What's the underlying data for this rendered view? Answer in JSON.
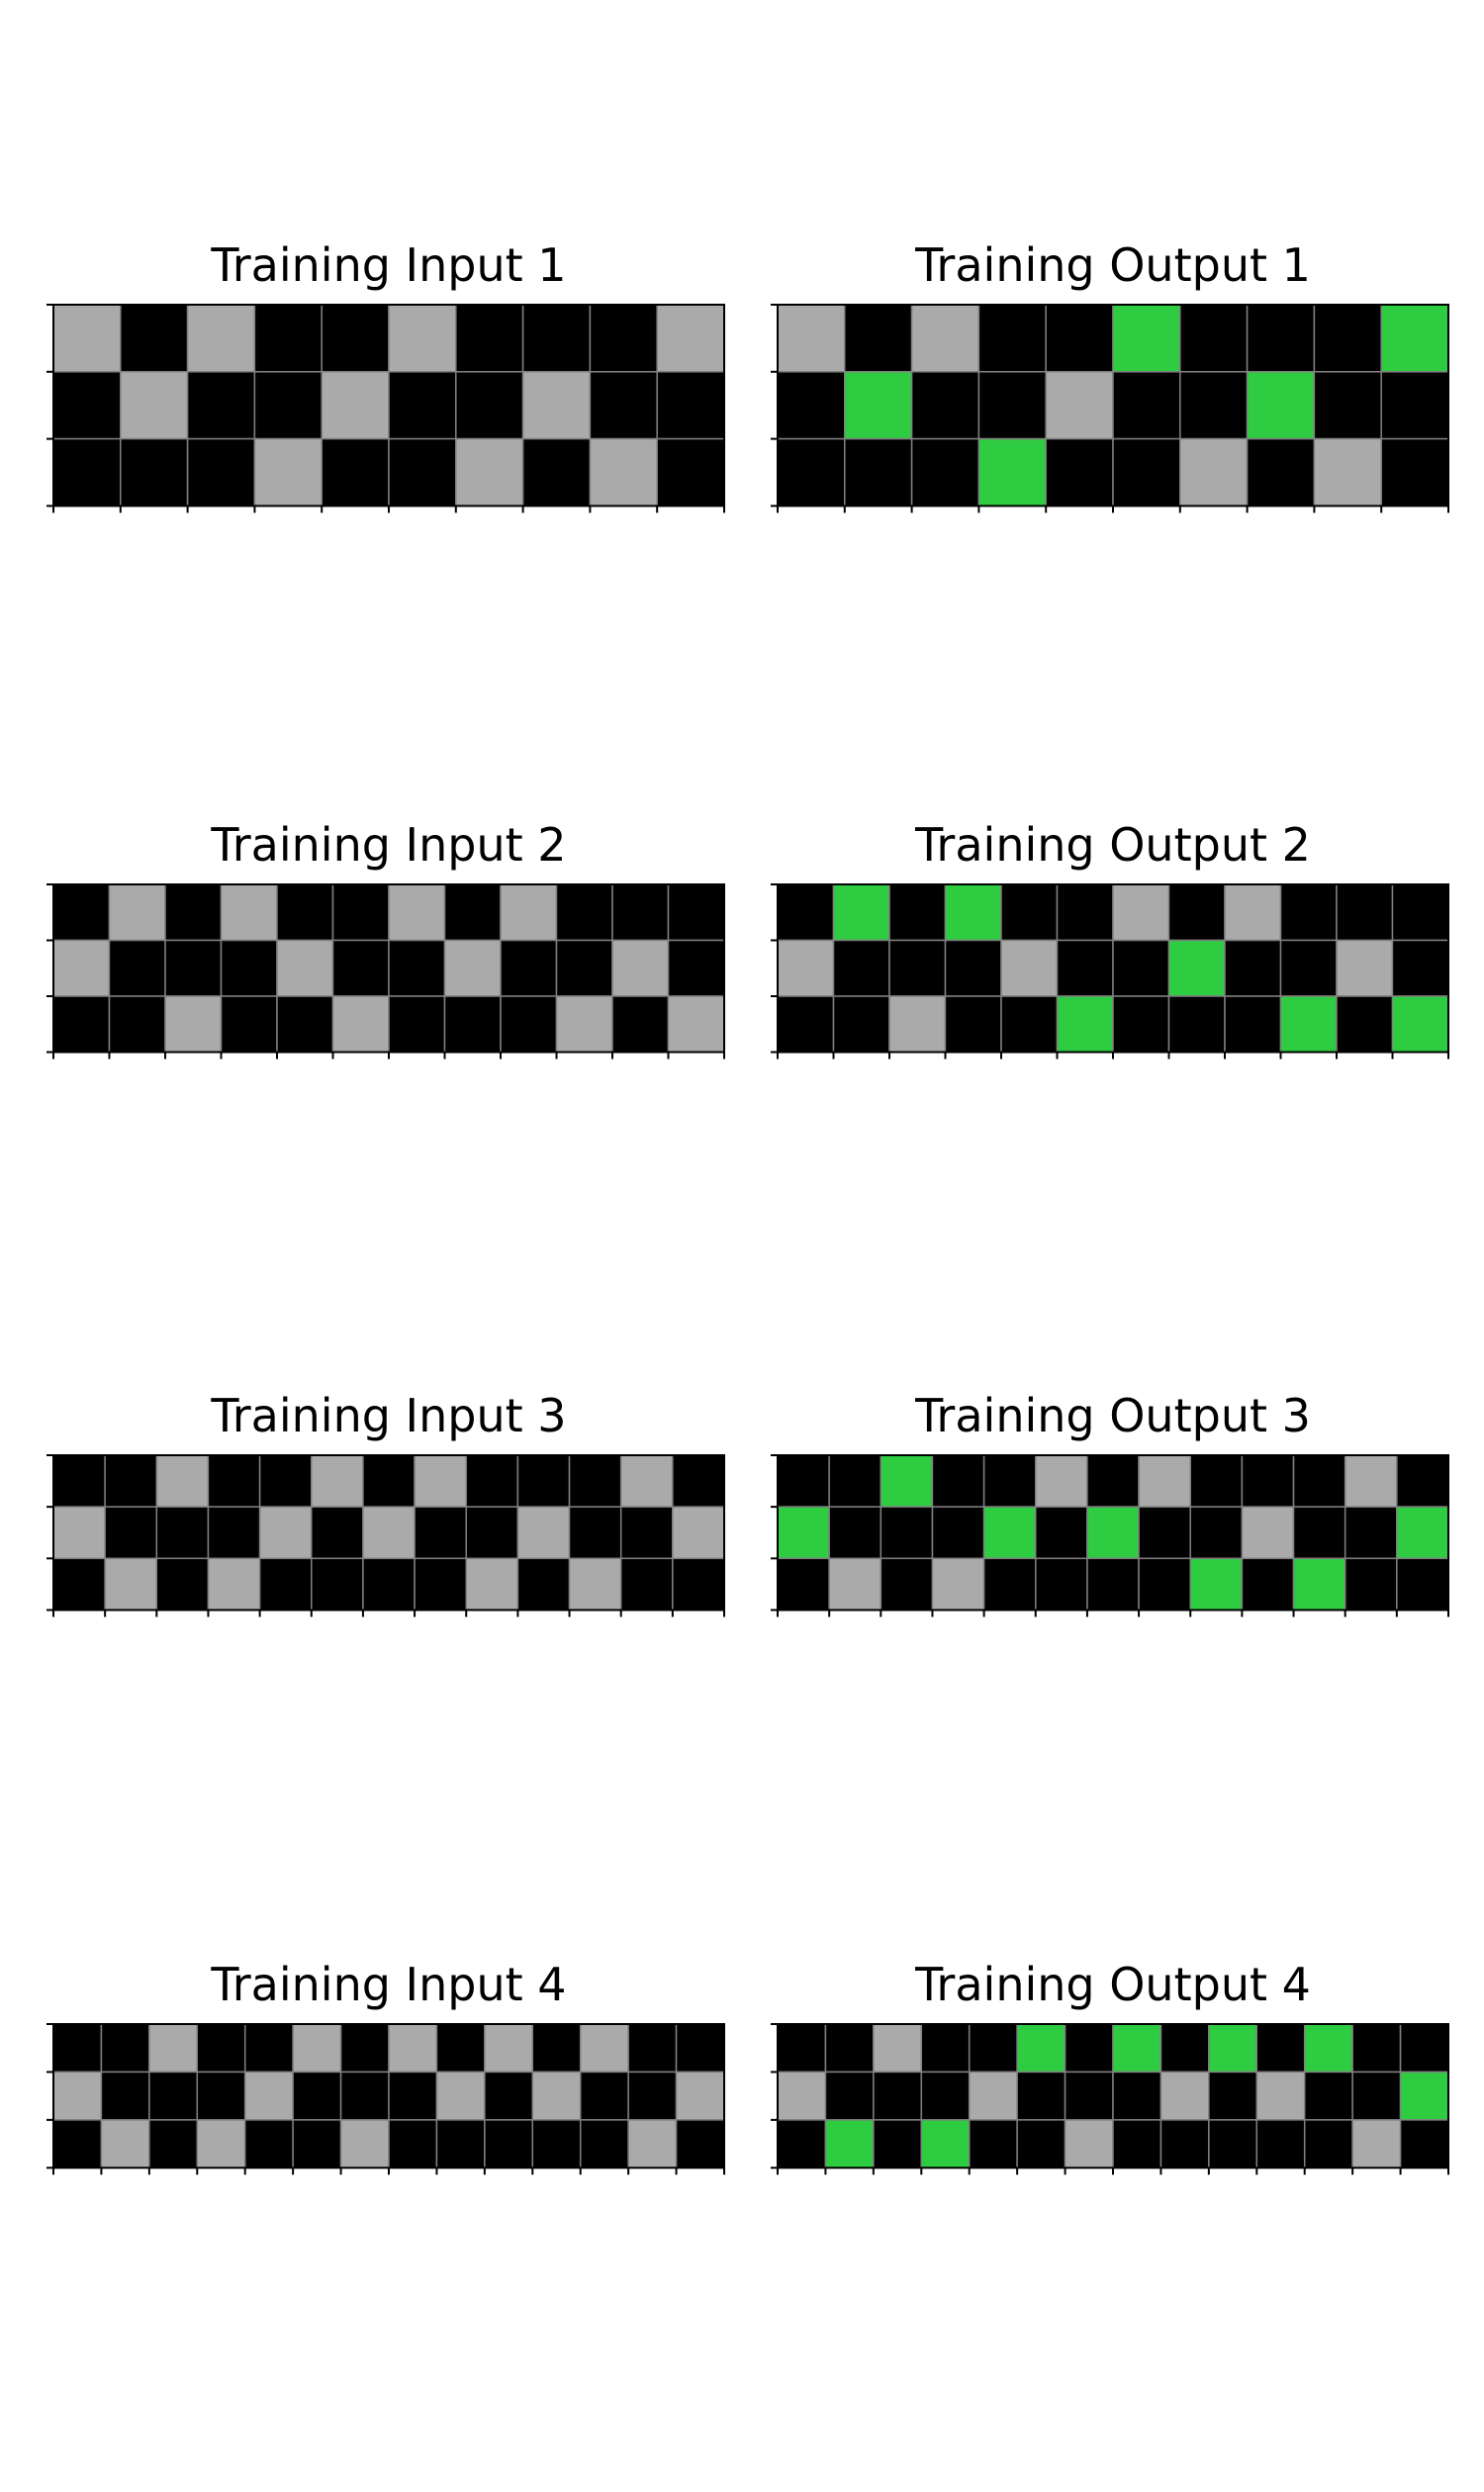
{
  "colors": {
    "0": "#000000",
    "3": "#2ecc40",
    "5": "#aaaaaa",
    "gridline": "#808080",
    "frame": "#000000"
  },
  "panels": [
    {
      "title": "Training Input 1",
      "grid": [
        [
          5,
          0,
          5,
          0,
          0,
          5,
          0,
          0,
          0,
          5
        ],
        [
          0,
          5,
          0,
          0,
          5,
          0,
          0,
          5,
          0,
          0
        ],
        [
          0,
          0,
          0,
          5,
          0,
          0,
          5,
          0,
          5,
          0
        ]
      ]
    },
    {
      "title": "Training Output 1",
      "grid": [
        [
          5,
          0,
          5,
          0,
          0,
          3,
          0,
          0,
          0,
          3
        ],
        [
          0,
          3,
          0,
          0,
          5,
          0,
          0,
          3,
          0,
          0
        ],
        [
          0,
          0,
          0,
          3,
          0,
          0,
          5,
          0,
          5,
          0
        ]
      ]
    },
    {
      "title": "Training Input 2",
      "grid": [
        [
          0,
          5,
          0,
          5,
          0,
          0,
          5,
          0,
          5,
          0,
          0,
          0
        ],
        [
          5,
          0,
          0,
          0,
          5,
          0,
          0,
          5,
          0,
          0,
          5,
          0
        ],
        [
          0,
          0,
          5,
          0,
          0,
          5,
          0,
          0,
          0,
          5,
          0,
          5
        ]
      ]
    },
    {
      "title": "Training Output 2",
      "grid": [
        [
          0,
          3,
          0,
          3,
          0,
          0,
          5,
          0,
          5,
          0,
          0,
          0
        ],
        [
          5,
          0,
          0,
          0,
          5,
          0,
          0,
          3,
          0,
          0,
          5,
          0
        ],
        [
          0,
          0,
          5,
          0,
          0,
          3,
          0,
          0,
          0,
          3,
          0,
          3
        ]
      ]
    },
    {
      "title": "Training Input 3",
      "grid": [
        [
          0,
          0,
          5,
          0,
          0,
          5,
          0,
          5,
          0,
          0,
          0,
          5,
          0
        ],
        [
          5,
          0,
          0,
          0,
          5,
          0,
          5,
          0,
          0,
          5,
          0,
          0,
          5
        ],
        [
          0,
          5,
          0,
          5,
          0,
          0,
          0,
          0,
          5,
          0,
          5,
          0,
          0
        ]
      ]
    },
    {
      "title": "Training Output 3",
      "grid": [
        [
          0,
          0,
          3,
          0,
          0,
          5,
          0,
          5,
          0,
          0,
          0,
          5,
          0
        ],
        [
          3,
          0,
          0,
          0,
          3,
          0,
          3,
          0,
          0,
          5,
          0,
          0,
          3
        ],
        [
          0,
          5,
          0,
          5,
          0,
          0,
          0,
          0,
          3,
          0,
          3,
          0,
          0
        ]
      ]
    },
    {
      "title": "Training Input 4",
      "grid": [
        [
          0,
          0,
          5,
          0,
          0,
          5,
          0,
          5,
          0,
          5,
          0,
          5,
          0,
          0
        ],
        [
          5,
          0,
          0,
          0,
          5,
          0,
          0,
          0,
          5,
          0,
          5,
          0,
          0,
          5
        ],
        [
          0,
          5,
          0,
          5,
          0,
          0,
          5,
          0,
          0,
          0,
          0,
          0,
          5,
          0
        ]
      ]
    },
    {
      "title": "Training Output 4",
      "grid": [
        [
          0,
          0,
          5,
          0,
          0,
          3,
          0,
          3,
          0,
          3,
          0,
          3,
          0,
          0
        ],
        [
          5,
          0,
          0,
          0,
          5,
          0,
          0,
          0,
          5,
          0,
          5,
          0,
          0,
          3
        ],
        [
          0,
          3,
          0,
          3,
          0,
          0,
          5,
          0,
          0,
          0,
          0,
          0,
          5,
          0
        ]
      ]
    }
  ]
}
